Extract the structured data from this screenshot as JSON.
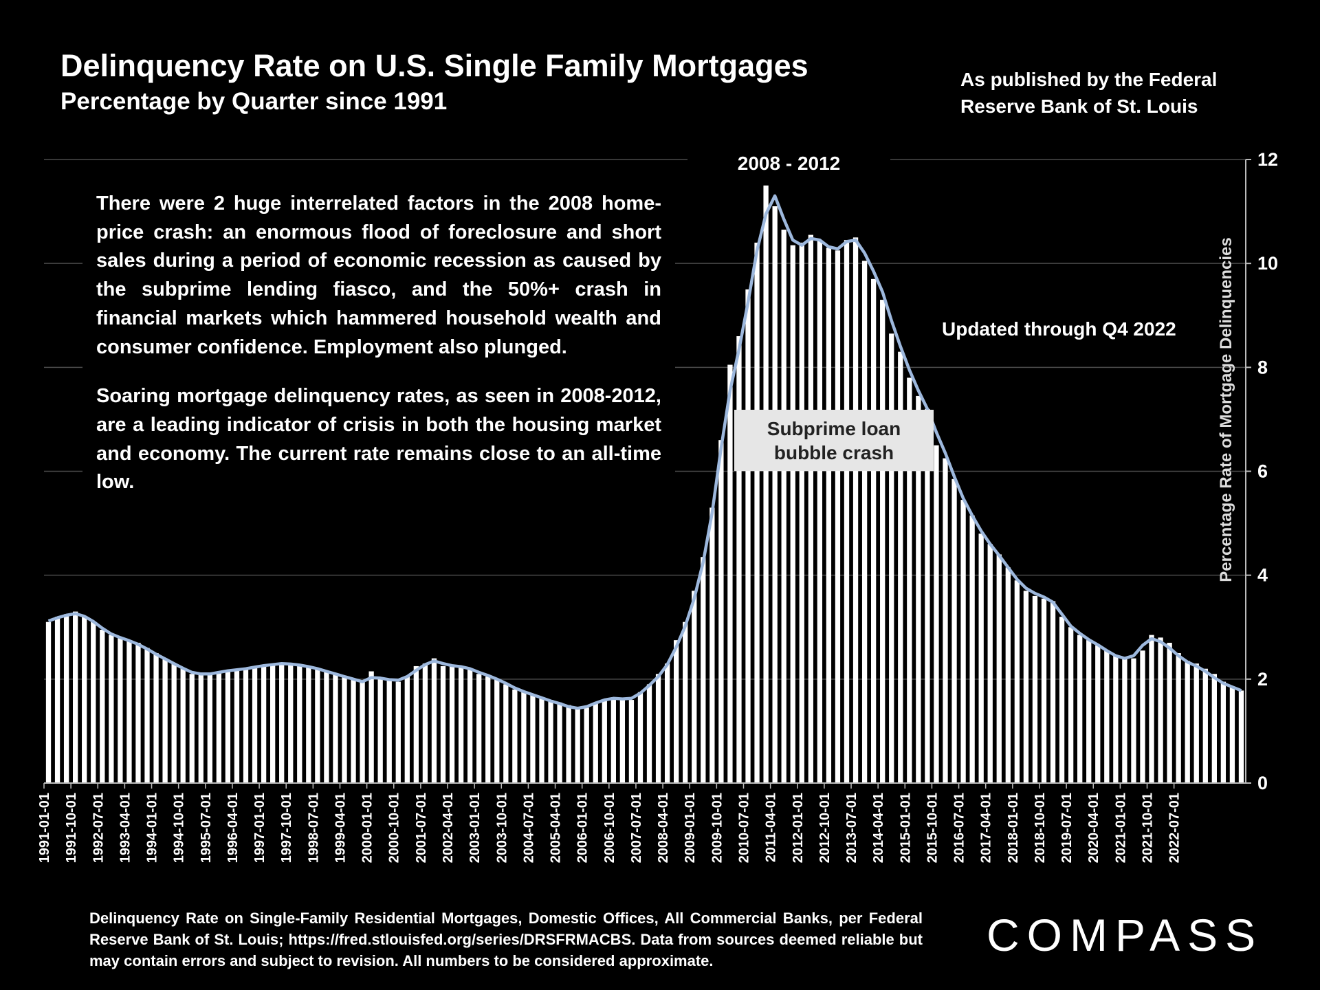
{
  "header": {
    "title": "Delinquency Rate on U.S. Single Family Mortgages",
    "subtitle": "Percentage by Quarter since 1991",
    "source_note": "As published by the Federal\nReserve Bank of St. Louis"
  },
  "annotations": {
    "period": "2008 - 2012",
    "updated": "Updated through Q4 2022",
    "callout": "Subprime loan\nbubble crash",
    "story_p1": "There were 2 huge interrelated factors in the 2008 home-price crash:  an enormous flood of foreclosure and short sales during a period of economic recession as caused by the subprime lending fiasco, and the 50%+ crash in financial markets which hammered household wealth and consumer confidence. Employment also plunged.",
    "story_p2": "Soaring mortgage delinquency rates, as seen in 2008-2012, are a leading indicator of crisis in both the housing market and economy. The current rate remains close to an all-time low."
  },
  "footer": {
    "note": "Delinquency Rate on Single-Family Residential Mortgages, Domestic Offices, All Commercial Banks, per Federal Reserve Bank of St. Louis; https://fred.stlouisfed.org/series/DRSFRMACBS. Data from sources deemed reliable but may contain errors and subject to revision. All numbers to be considered approximate.",
    "brand": "COMPASS"
  },
  "colors": {
    "background": "#000000",
    "bars": "#ffffff",
    "trend_line": "#9db8dd",
    "grid": "#4a4a4a",
    "callout_bg": "#e6e6e6"
  },
  "chart_data": {
    "type": "bar",
    "ylabel": "Percentage Rate of Mortgage Delinquencies",
    "y_axis_side": "right",
    "ylim": [
      0,
      12
    ],
    "yticks": [
      0,
      2,
      4,
      6,
      8,
      10,
      12
    ],
    "grid": true,
    "x_tick_labels": [
      "1991-01-01",
      "1991-10-01",
      "1992-07-01",
      "1993-04-01",
      "1994-01-01",
      "1994-10-01",
      "1995-07-01",
      "1996-04-01",
      "1997-01-01",
      "1997-10-01",
      "1998-07-01",
      "1999-04-01",
      "2000-01-01",
      "2000-10-01",
      "2001-07-01",
      "2002-04-01",
      "2003-01-01",
      "2003-10-01",
      "2004-07-01",
      "2005-04-01",
      "2006-01-01",
      "2006-10-01",
      "2007-07-01",
      "2008-04-01",
      "2009-01-01",
      "2009-10-01",
      "2010-07-01",
      "2011-04-01",
      "2012-01-01",
      "2012-10-01",
      "2013-07-01",
      "2014-04-01",
      "2015-01-01",
      "2015-10-01",
      "2016-07-01",
      "2017-04-01",
      "2018-01-01",
      "2018-10-01",
      "2019-07-01",
      "2020-04-01",
      "2021-01-01",
      "2021-10-01",
      "2022-07-01"
    ],
    "series": [
      {
        "type": "bar",
        "x_start": "1991-01-01",
        "frequency": "quarterly",
        "values": [
          3.1,
          3.2,
          3.25,
          3.3,
          3.2,
          3.1,
          2.95,
          2.85,
          2.8,
          2.75,
          2.7,
          2.6,
          2.5,
          2.4,
          2.3,
          2.2,
          2.1,
          2.1,
          2.1,
          2.15,
          2.15,
          2.2,
          2.2,
          2.25,
          2.25,
          2.3,
          2.3,
          2.3,
          2.25,
          2.25,
          2.2,
          2.15,
          2.1,
          2.05,
          2.0,
          1.95,
          2.15,
          2.0,
          2.0,
          1.95,
          2.05,
          2.25,
          2.3,
          2.4,
          2.25,
          2.25,
          2.25,
          2.2,
          2.1,
          2.05,
          2.0,
          1.9,
          1.8,
          1.75,
          1.7,
          1.65,
          1.6,
          1.55,
          1.5,
          1.45,
          1.45,
          1.55,
          1.6,
          1.65,
          1.6,
          1.6,
          1.75,
          1.9,
          2.1,
          2.3,
          2.75,
          3.1,
          3.7,
          4.35,
          5.3,
          6.6,
          8.05,
          8.6,
          9.5,
          10.4,
          11.5,
          11.1,
          10.65,
          10.35,
          10.4,
          10.55,
          10.45,
          10.3,
          10.25,
          10.45,
          10.5,
          10.05,
          9.7,
          9.3,
          8.65,
          8.3,
          7.8,
          7.45,
          7.2,
          6.5,
          6.25,
          5.85,
          5.45,
          5.15,
          4.8,
          4.6,
          4.4,
          4.15,
          3.9,
          3.7,
          3.6,
          3.55,
          3.5,
          3.2,
          3.0,
          2.85,
          2.75,
          2.65,
          2.55,
          2.45,
          2.4,
          2.4,
          2.55,
          2.85,
          2.8,
          2.7,
          2.5,
          2.35,
          2.3,
          2.2,
          2.1,
          1.95,
          1.85,
          1.78
        ]
      },
      {
        "type": "line",
        "values": [
          3.12,
          3.18,
          3.23,
          3.26,
          3.21,
          3.11,
          2.98,
          2.87,
          2.8,
          2.74,
          2.67,
          2.58,
          2.48,
          2.39,
          2.3,
          2.21,
          2.13,
          2.1,
          2.1,
          2.13,
          2.16,
          2.18,
          2.2,
          2.23,
          2.26,
          2.28,
          2.3,
          2.29,
          2.27,
          2.24,
          2.2,
          2.15,
          2.1,
          2.05,
          2.0,
          1.95,
          2.03,
          2.02,
          1.99,
          1.98,
          2.05,
          2.17,
          2.28,
          2.35,
          2.3,
          2.26,
          2.24,
          2.2,
          2.13,
          2.07,
          2.0,
          1.92,
          1.83,
          1.76,
          1.7,
          1.64,
          1.58,
          1.53,
          1.47,
          1.44,
          1.47,
          1.54,
          1.6,
          1.63,
          1.62,
          1.63,
          1.73,
          1.88,
          2.05,
          2.28,
          2.62,
          3.02,
          3.55,
          4.25,
          5.2,
          6.45,
          7.55,
          8.35,
          9.25,
          10.25,
          10.95,
          11.3,
          10.85,
          10.45,
          10.35,
          10.48,
          10.45,
          10.32,
          10.28,
          10.42,
          10.45,
          10.2,
          9.85,
          9.45,
          8.9,
          8.4,
          7.95,
          7.55,
          7.2,
          6.75,
          6.35,
          5.9,
          5.48,
          5.15,
          4.85,
          4.6,
          4.38,
          4.15,
          3.92,
          3.75,
          3.65,
          3.58,
          3.48,
          3.25,
          3.02,
          2.88,
          2.76,
          2.66,
          2.55,
          2.45,
          2.4,
          2.45,
          2.65,
          2.78,
          2.72,
          2.6,
          2.45,
          2.33,
          2.25,
          2.15,
          2.03,
          1.92,
          1.85,
          1.78
        ]
      }
    ]
  }
}
